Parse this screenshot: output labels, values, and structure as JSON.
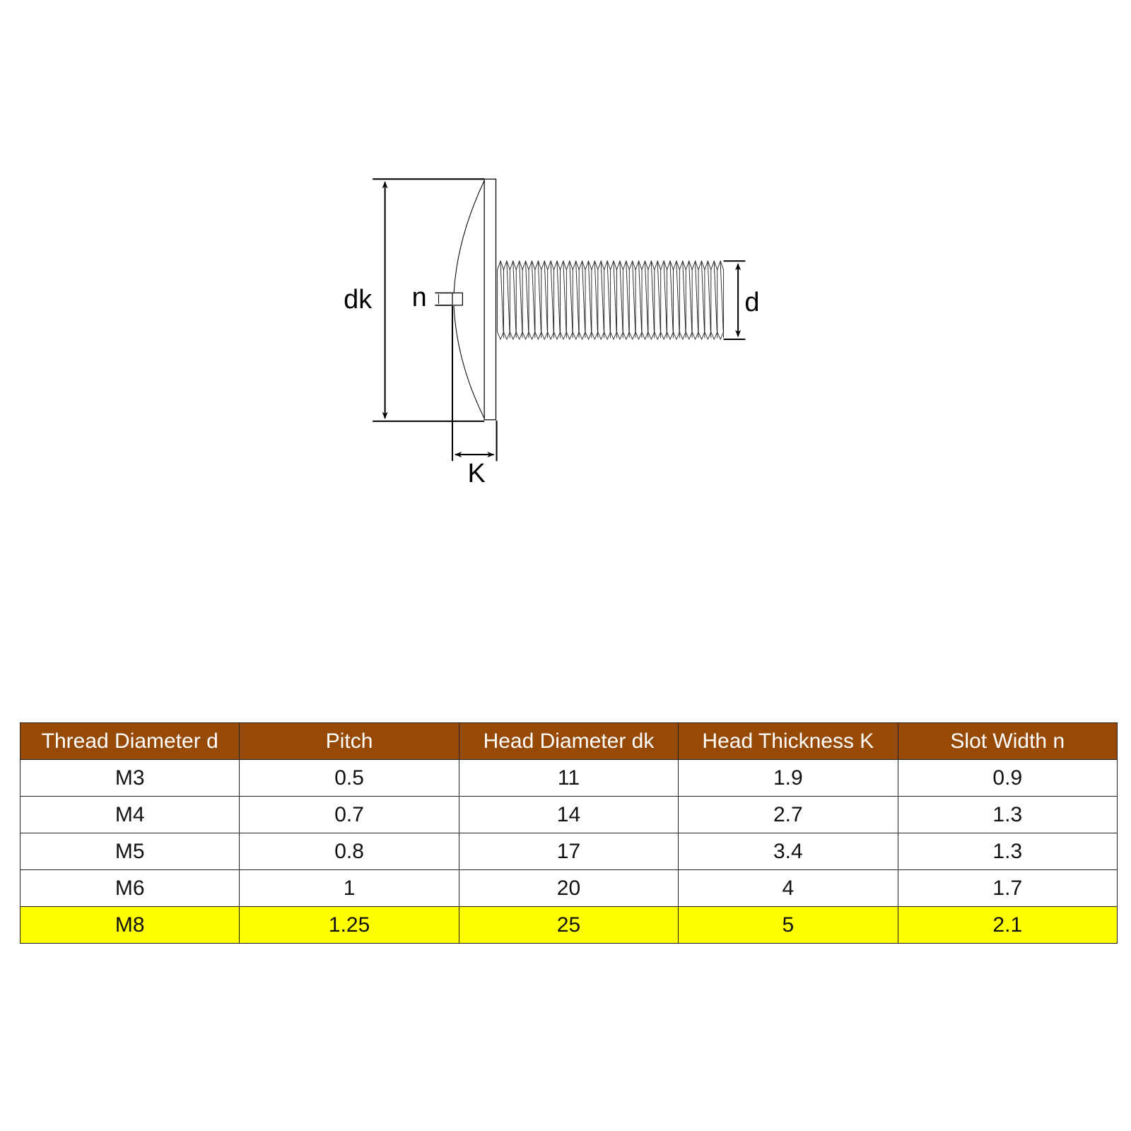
{
  "diagram": {
    "labels": {
      "dk": "dk",
      "n": "n",
      "d": "d",
      "K": "K"
    }
  },
  "table": {
    "header_color": "#974a06",
    "highlight_color": "#ffff00",
    "columns": [
      "Thread Diameter d",
      "Pitch",
      "Head Diameter dk",
      "Head Thickness K",
      "Slot Width n"
    ],
    "rows": [
      [
        "M3",
        "0.5",
        "11",
        "1.9",
        "0.9"
      ],
      [
        "M4",
        "0.7",
        "14",
        "2.7",
        "1.3"
      ],
      [
        "M5",
        "0.8",
        "17",
        "3.4",
        "1.3"
      ],
      [
        "M6",
        "1",
        "20",
        "4",
        "1.7"
      ],
      [
        "M8",
        "1.25",
        "25",
        "5",
        "2.1"
      ]
    ],
    "highlighted_row": 4
  }
}
